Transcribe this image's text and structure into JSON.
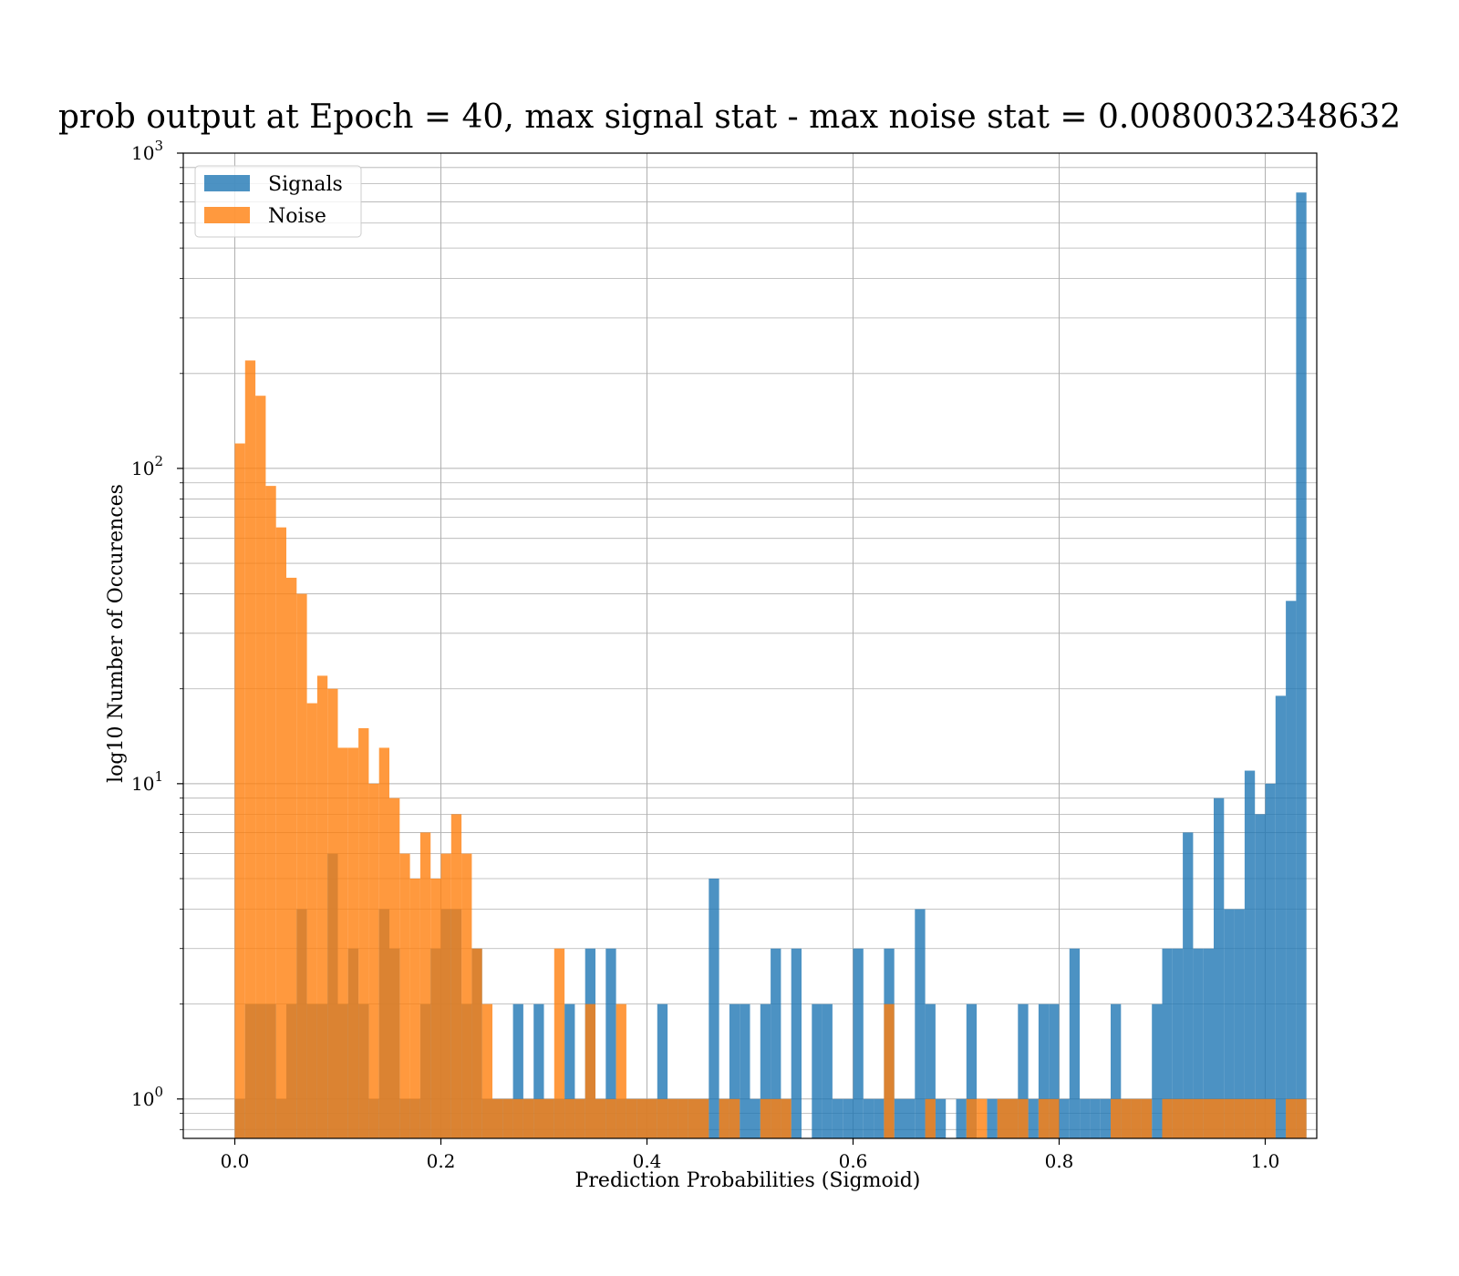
{
  "chart_data": {
    "type": "bar",
    "title": "prob output at Epoch = 40, max signal stat - max noise stat = 0.0080032348632",
    "xlabel": "Prediction Probabilities (Sigmoid)",
    "ylabel": "log10 Number of Occurences",
    "xlim": [
      -0.05,
      1.05
    ],
    "ylim": [
      0.75,
      1000
    ],
    "yscale": "log",
    "grid": true,
    "legend": "top-left",
    "bin_width": 0.01,
    "x_ticks": [
      "0.0",
      "0.2",
      "0.4",
      "0.6",
      "0.8",
      "1.0"
    ],
    "y_ticks": [
      {
        "base": "10",
        "exp": "0"
      },
      {
        "base": "10",
        "exp": "1"
      },
      {
        "base": "10",
        "exp": "2"
      },
      {
        "base": "10",
        "exp": "3"
      }
    ],
    "colors": {
      "signals": "#1f77b4",
      "noise": "#ff7f0e"
    },
    "series": [
      {
        "name": "Signals",
        "color": "#1f77b4",
        "values": [
          1,
          2,
          2,
          2,
          1,
          2,
          4,
          2,
          2,
          6,
          2,
          3,
          2,
          1,
          4,
          3,
          1,
          1,
          2,
          3,
          4,
          4,
          2,
          3,
          1,
          1,
          1,
          2,
          1,
          2,
          1,
          1,
          2,
          1,
          3,
          1,
          3,
          1,
          1,
          1,
          1,
          2,
          1,
          1,
          1,
          1,
          5,
          1,
          2,
          2,
          1,
          2,
          3,
          1,
          3,
          0,
          2,
          2,
          1,
          1,
          3,
          1,
          1,
          3,
          1,
          1,
          4,
          2,
          1,
          0,
          1,
          2,
          0,
          1,
          1,
          1,
          2,
          1,
          2,
          2,
          1,
          3,
          1,
          1,
          1,
          2,
          1,
          1,
          1,
          2,
          3,
          3,
          7,
          3,
          3,
          9,
          4,
          4,
          11,
          8,
          10,
          19,
          38,
          750
        ]
      },
      {
        "name": "Noise",
        "color": "#ff7f0e",
        "values": [
          120,
          220,
          170,
          88,
          65,
          45,
          40,
          18,
          22,
          20,
          13,
          13,
          15,
          10,
          13,
          9,
          6,
          5,
          7,
          5,
          6,
          8,
          6,
          3,
          2,
          1,
          1,
          1,
          1,
          1,
          1,
          3,
          1,
          1,
          2,
          1,
          1,
          2,
          1,
          1,
          1,
          1,
          1,
          1,
          1,
          1,
          0,
          1,
          1,
          0,
          0,
          1,
          1,
          1,
          0,
          0,
          0,
          0,
          0,
          0,
          0,
          0,
          0,
          2,
          0,
          0,
          0,
          1,
          0,
          0,
          0,
          1,
          1,
          0,
          1,
          1,
          1,
          0,
          1,
          1,
          0,
          0,
          0,
          0,
          0,
          1,
          1,
          1,
          1,
          0,
          1,
          1,
          1,
          1,
          1,
          1,
          1,
          1,
          1,
          1,
          1,
          0,
          1,
          1
        ]
      }
    ]
  }
}
